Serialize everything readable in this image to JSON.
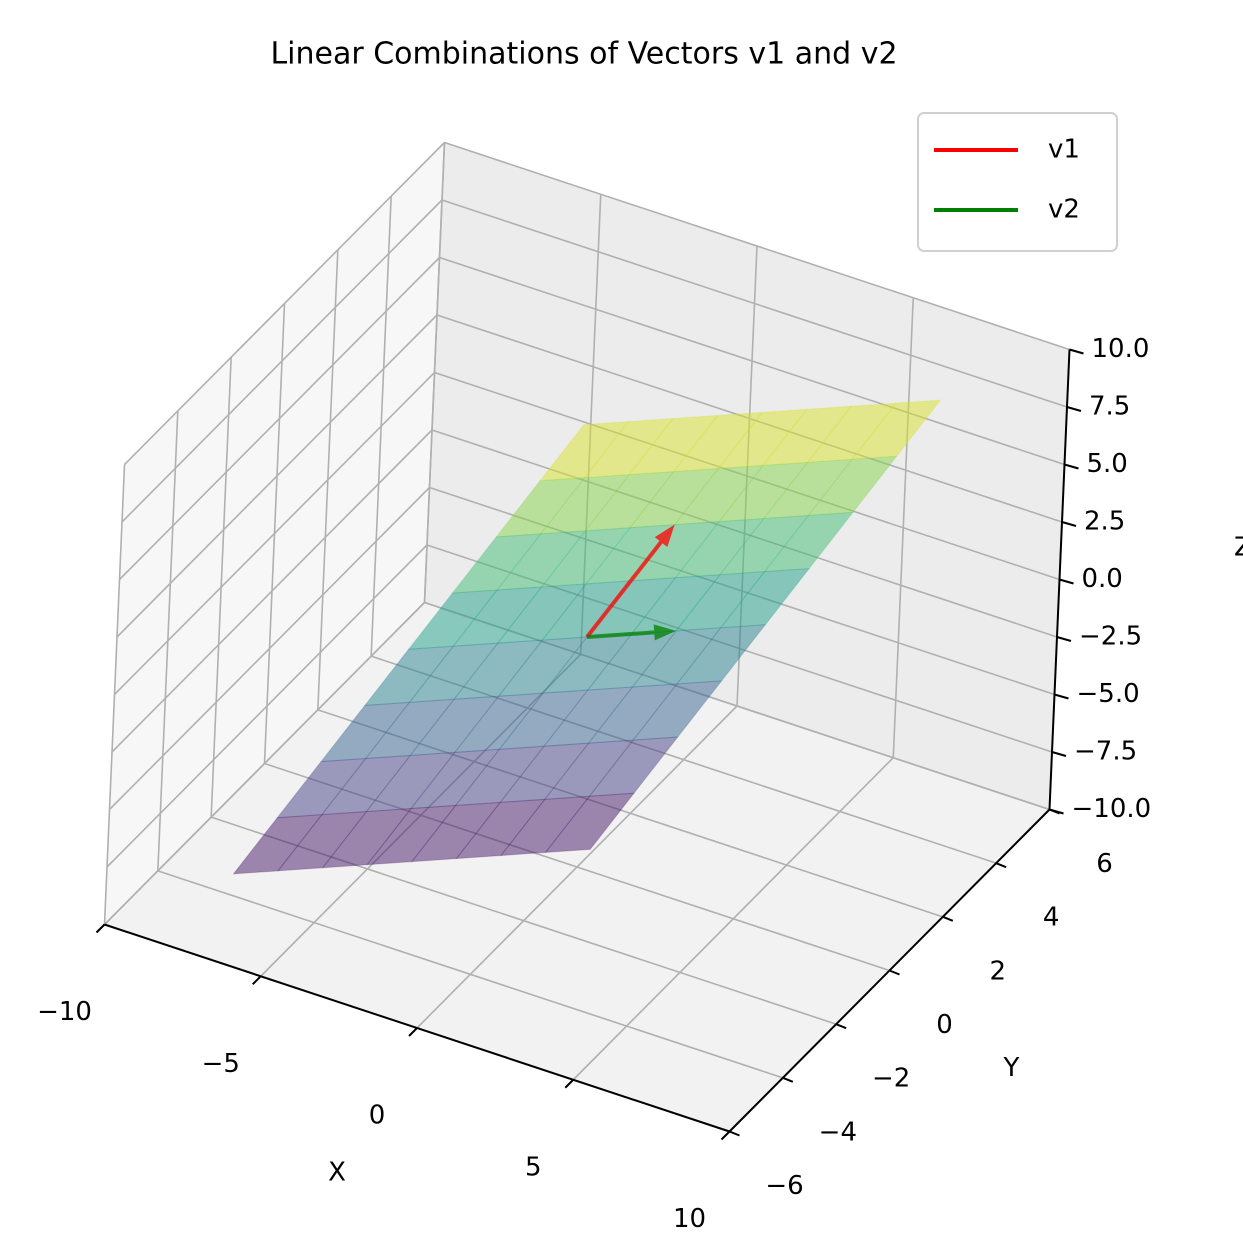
{
  "chart_data": {
    "type": "surface3d",
    "title": "Linear Combinations of Vectors v1 and v2",
    "xlabel": "X",
    "ylabel": "Y",
    "zlabel": "Z",
    "series": [
      {
        "name": "v1",
        "color": "#ff0000",
        "values": [
          1,
          2,
          3
        ]
      },
      {
        "name": "v2",
        "color": "#008000",
        "values": [
          2,
          1,
          0
        ]
      }
    ],
    "surface": {
      "s": [
        -2,
        -1.5,
        -1,
        -0.5,
        0,
        0.5,
        1,
        1.5,
        2
      ],
      "t": [
        -2,
        -1.5,
        -1,
        -0.5,
        0,
        0.5,
        1,
        1.5,
        2
      ],
      "colormap": "viridis",
      "alpha": 0.5
    },
    "xlim": [
      -10,
      10
    ],
    "ylim": [
      -6,
      6
    ],
    "zlim": [
      -10,
      10
    ],
    "xticks": [
      {
        "value": -10,
        "label": "−10"
      },
      {
        "value": -5,
        "label": "−5"
      },
      0,
      5,
      10
    ],
    "yticks": [
      {
        "value": -6,
        "label": "−6"
      },
      {
        "value": -4,
        "label": "−4"
      },
      {
        "value": -2,
        "label": "−2"
      },
      0,
      2,
      4,
      6
    ],
    "zticks": [
      {
        "value": -10,
        "label": "−10.0"
      },
      {
        "value": -7.5,
        "label": "−7.5"
      },
      {
        "value": -5,
        "label": "−5.0"
      },
      {
        "value": -2.5,
        "label": "−2.5"
      },
      {
        "value": 0,
        "label": "0.0"
      },
      2.5,
      {
        "value": 5,
        "label": "5.0"
      },
      7.5,
      {
        "value": 10,
        "label": "10.0"
      }
    ],
    "grid": true,
    "legend": "upper right"
  }
}
